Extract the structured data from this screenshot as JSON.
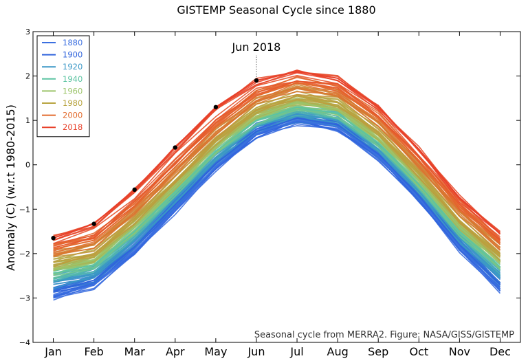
{
  "chart_data": {
    "type": "line",
    "title": "GISTEMP Seasonal Cycle since 1880",
    "xlabel": "",
    "ylabel": "Anomaly (C) (w.r.t 1980-2015)",
    "categories": [
      "Jan",
      "Feb",
      "Mar",
      "Apr",
      "May",
      "Jun",
      "Jul",
      "Aug",
      "Sep",
      "Oct",
      "Nov",
      "Dec"
    ],
    "ylim": [
      -4,
      3
    ],
    "yticks": [
      "3",
      "2",
      "1",
      "0",
      "−1",
      "−2",
      "−3",
      "−4"
    ],
    "ytick_values": [
      3,
      2,
      1,
      0,
      -1,
      -2,
      -3,
      -4
    ],
    "legend_position": "top-left",
    "legend": [
      {
        "label": "1880",
        "color": "#3b6fe0"
      },
      {
        "label": "1900",
        "color": "#2f63dc"
      },
      {
        "label": "1920",
        "color": "#3a97c6"
      },
      {
        "label": "1940",
        "color": "#5cc4a2"
      },
      {
        "label": "1960",
        "color": "#9cc46a"
      },
      {
        "label": "1980",
        "color": "#b8a440"
      },
      {
        "label": "2000",
        "color": "#e26a2c"
      },
      {
        "label": "2018",
        "color": "#e8402a"
      }
    ],
    "series": [
      {
        "name": "1880",
        "color": "#3b6fe0",
        "values": [
          -2.95,
          -2.7,
          -1.95,
          -1.0,
          -0.05,
          0.7,
          1.0,
          0.85,
          0.2,
          -0.75,
          -1.85,
          -2.8
        ]
      },
      {
        "name": "1900",
        "color": "#2f63dc",
        "values": [
          -2.85,
          -2.6,
          -1.85,
          -0.9,
          0.02,
          0.75,
          1.05,
          0.9,
          0.25,
          -0.7,
          -1.8,
          -2.7
        ]
      },
      {
        "name": "1920",
        "color": "#3a97c6",
        "values": [
          -2.65,
          -2.45,
          -1.7,
          -0.75,
          0.15,
          0.85,
          1.15,
          1.0,
          0.35,
          -0.6,
          -1.65,
          -2.5
        ]
      },
      {
        "name": "1940",
        "color": "#5cc4a2",
        "values": [
          -2.45,
          -2.25,
          -1.5,
          -0.6,
          0.3,
          1.0,
          1.3,
          1.15,
          0.5,
          -0.45,
          -1.5,
          -2.3
        ]
      },
      {
        "name": "1960",
        "color": "#9cc46a",
        "values": [
          -2.35,
          -2.15,
          -1.4,
          -0.5,
          0.4,
          1.1,
          1.4,
          1.25,
          0.6,
          -0.35,
          -1.4,
          -2.2
        ]
      },
      {
        "name": "1980",
        "color": "#b8a440",
        "values": [
          -2.2,
          -2.0,
          -1.25,
          -0.35,
          0.55,
          1.25,
          1.55,
          1.4,
          0.75,
          -0.2,
          -1.25,
          -2.05
        ]
      },
      {
        "name": "2000",
        "color": "#e26a2c",
        "values": [
          -1.9,
          -1.7,
          -0.95,
          -0.05,
          0.85,
          1.55,
          1.85,
          1.7,
          1.05,
          0.1,
          -0.95,
          -1.75
        ]
      },
      {
        "name": "2018",
        "color": "#e8402a",
        "values": [
          -1.65,
          -1.33,
          -0.56,
          0.39,
          1.3,
          1.9,
          2.1,
          1.95,
          1.3,
          0.35,
          -0.75,
          -1.55
        ]
      }
    ],
    "highlight_points": {
      "series": "2018",
      "months": [
        "Jan",
        "Feb",
        "Mar",
        "Apr",
        "May",
        "Jun"
      ],
      "values": [
        -1.65,
        -1.33,
        -0.56,
        0.39,
        1.3,
        1.9
      ]
    },
    "annotation": {
      "text": "Jun 2018",
      "month": "Jun",
      "value": 1.9
    },
    "footnote": "Seasonal cycle from MERRA2. Figure: NASA/GISS/GISTEMP",
    "grid": false
  }
}
